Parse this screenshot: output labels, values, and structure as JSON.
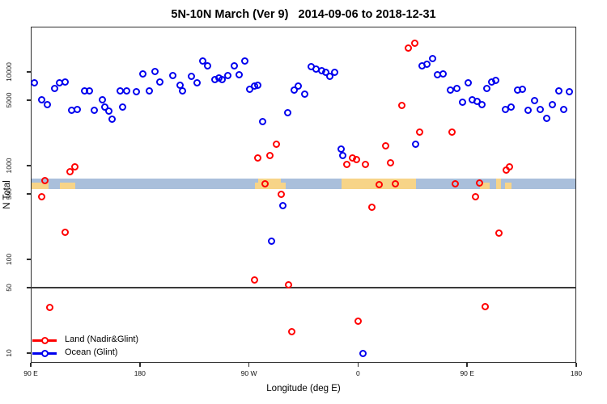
{
  "title": "5N-10N March (Ver 9)   2014-09-06 to 2018-12-31",
  "chart_data": {
    "type": "scatter",
    "title": "5N-10N March (Ver 9)   2014-09-06 to 2018-12-31",
    "xlabel": "Longitude (deg E)",
    "ylabel": "N Total",
    "x_axis": {
      "range_deg_continuous": [
        90,
        540
      ],
      "wrap_note": "axis runs 90E to 180 to 90W to 0 to 90E to 180",
      "ticks": [
        {
          "value": 90,
          "label": "90 E"
        },
        {
          "value": 180,
          "label": "180"
        },
        {
          "value": 270,
          "label": "90 W"
        },
        {
          "value": 360,
          "label": "0"
        },
        {
          "value": 450,
          "label": "90 E"
        },
        {
          "value": 540,
          "label": "180"
        }
      ]
    },
    "y_axis": {
      "scale": "log10",
      "ticks": [
        10,
        50,
        100,
        500,
        1000,
        5000,
        10000
      ],
      "range": [
        8,
        31000
      ]
    },
    "reference_line": {
      "value": 50
    },
    "map_band": {
      "value_range": [
        560,
        730
      ],
      "ocean_color": "#a9bfdb",
      "land_color": "#f7d488",
      "land_patches": [
        {
          "lon": [
            91,
            105
          ],
          "full": false
        },
        {
          "lon": [
            114,
            127
          ],
          "full": false
        },
        {
          "lon": [
            275,
            277.5
          ],
          "full": false
        },
        {
          "lon": [
            277.5,
            296.5
          ],
          "full": true
        },
        {
          "lon": [
            296.5,
            300.5
          ],
          "full": false
        },
        {
          "lon": [
            346.5,
            408
          ],
          "full": true
        },
        {
          "lon": [
            460.5,
            468.5
          ],
          "full": false
        },
        {
          "lon": [
            474,
            478
          ],
          "full": true
        },
        {
          "lon": [
            481,
            486.5
          ],
          "full": false
        }
      ]
    },
    "series": [
      {
        "name": "Land (Nadir&Glint)",
        "color": "#ff0000",
        "points": [
          [
            99.3,
            470
          ],
          [
            102,
            686
          ],
          [
            106,
            31
          ],
          [
            118.7,
            196
          ],
          [
            122.7,
            856
          ],
          [
            126.7,
            964
          ],
          [
            274.3,
            60
          ],
          [
            277.6,
            1200
          ],
          [
            283,
            645
          ],
          [
            287.6,
            1270
          ],
          [
            292.3,
            1680
          ],
          [
            296.9,
            498
          ],
          [
            302.9,
            54
          ],
          [
            305.6,
            17
          ],
          [
            351,
            1040
          ],
          [
            355.6,
            1200
          ],
          [
            359,
            1170
          ],
          [
            360.3,
            22
          ],
          [
            366.3,
            1040
          ],
          [
            371.6,
            357
          ],
          [
            377.6,
            631
          ],
          [
            382.9,
            1640
          ],
          [
            386.9,
            1080
          ],
          [
            390.9,
            645
          ],
          [
            396.2,
            4360
          ],
          [
            401.6,
            17900
          ],
          [
            406.5,
            20100
          ],
          [
            410.5,
            2300
          ],
          [
            437.2,
            2300
          ],
          [
            440.5,
            645
          ],
          [
            457.2,
            470
          ],
          [
            460.5,
            658
          ],
          [
            465.2,
            31.6
          ],
          [
            476.5,
            192
          ],
          [
            482.5,
            890
          ],
          [
            485.2,
            980
          ]
        ]
      },
      {
        "name": "Ocean (Glint)",
        "color": "#0000ee",
        "points": [
          [
            93.3,
            7580
          ],
          [
            98.7,
            5090
          ],
          [
            104,
            4520
          ],
          [
            109.4,
            6720
          ],
          [
            113.4,
            7580
          ],
          [
            118.7,
            7880
          ],
          [
            123.4,
            3860
          ],
          [
            128.1,
            3940
          ],
          [
            134.1,
            6260
          ],
          [
            138.7,
            6260
          ],
          [
            142.7,
            3860
          ],
          [
            148.8,
            5010
          ],
          [
            150.8,
            4180
          ],
          [
            154.1,
            3790
          ],
          [
            157.4,
            3160
          ],
          [
            164.1,
            6260
          ],
          [
            166.1,
            4180
          ],
          [
            169.4,
            6260
          ],
          [
            176.8,
            6130
          ],
          [
            182.8,
            9610
          ],
          [
            188.1,
            6260
          ],
          [
            192.8,
            10200
          ],
          [
            196.8,
            7880
          ],
          [
            206.9,
            9070
          ],
          [
            213.5,
            7270
          ],
          [
            215.5,
            6260
          ],
          [
            222.2,
            8890
          ],
          [
            226.9,
            7580
          ],
          [
            231.6,
            13200
          ],
          [
            236.2,
            11700
          ],
          [
            241.6,
            8200
          ],
          [
            244.9,
            8700
          ],
          [
            247.6,
            8200
          ],
          [
            252.9,
            9070
          ],
          [
            257.6,
            11700
          ],
          [
            261.6,
            9260
          ],
          [
            266.9,
            13200
          ],
          [
            270.3,
            6500
          ],
          [
            274.9,
            7030
          ],
          [
            277.6,
            7270
          ],
          [
            281.6,
            2930
          ],
          [
            288.3,
            155
          ],
          [
            298.3,
            371
          ],
          [
            302.3,
            3640
          ],
          [
            307.6,
            6390
          ],
          [
            310.9,
            7030
          ],
          [
            316.3,
            5740
          ],
          [
            321.6,
            11300
          ],
          [
            325.6,
            10800
          ],
          [
            330.3,
            10400
          ],
          [
            333.6,
            9820
          ],
          [
            336.9,
            8890
          ],
          [
            340.9,
            9820
          ],
          [
            346.2,
            1510
          ],
          [
            347.6,
            1290
          ],
          [
            364.3,
            10
          ],
          [
            407.8,
            1700
          ],
          [
            412.5,
            11500
          ],
          [
            416.5,
            12000
          ],
          [
            421.2,
            13800
          ],
          [
            425.8,
            9260
          ],
          [
            430.5,
            9450
          ],
          [
            436.5,
            6390
          ],
          [
            441.2,
            6630
          ],
          [
            446.5,
            4720
          ],
          [
            451.2,
            7580
          ],
          [
            454.5,
            5010
          ],
          [
            457.9,
            4810
          ],
          [
            462.5,
            4520
          ],
          [
            466.5,
            6630
          ],
          [
            469.9,
            7730
          ],
          [
            473.9,
            8040
          ],
          [
            481.9,
            3940
          ],
          [
            486.5,
            4180
          ],
          [
            491.9,
            6390
          ],
          [
            495.9,
            6500
          ],
          [
            500.5,
            3860
          ],
          [
            505.9,
            4910
          ],
          [
            510.5,
            4010
          ],
          [
            515.8,
            3210
          ],
          [
            520.5,
            4520
          ],
          [
            525.8,
            6260
          ],
          [
            529.8,
            4010
          ],
          [
            534.5,
            6130
          ]
        ]
      }
    ],
    "legend_position": "bottom-left"
  }
}
